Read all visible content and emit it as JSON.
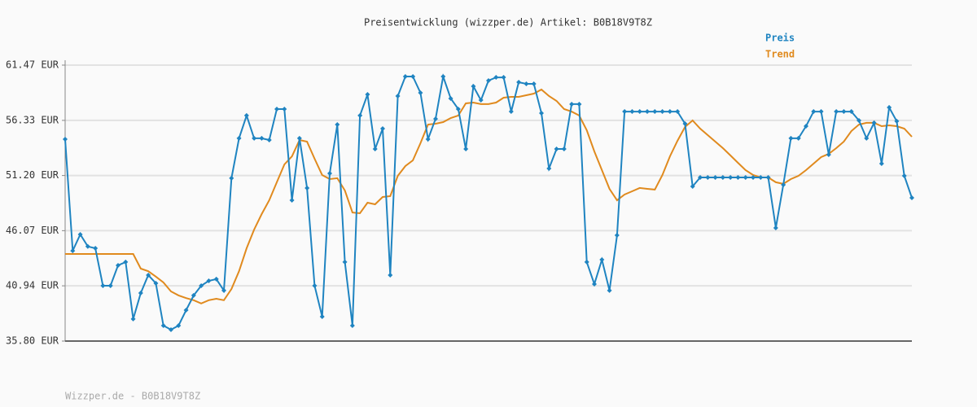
{
  "chart_data": {
    "type": "line",
    "title": "Preisentwicklung (wizzper.de) Artikel: B0B18V9T8Z",
    "footer": "Wizzper.de - B0B18V9T8Z",
    "ylim": [
      35.8,
      61.47
    ],
    "yticks": [
      {
        "value": 35.8,
        "label": "35.80 EUR"
      },
      {
        "value": 40.94,
        "label": "40.94 EUR"
      },
      {
        "value": 46.07,
        "label": "46.07 EUR"
      },
      {
        "value": 51.2,
        "label": "51.20 EUR"
      },
      {
        "value": 56.33,
        "label": "56.33 EUR"
      },
      {
        "value": 61.47,
        "label": "61.47 EUR"
      }
    ],
    "grid": true,
    "legend": "top-right",
    "series": [
      {
        "name": "Preis",
        "color": "#1f84c1",
        "markers": true,
        "values": [
          54.58,
          44.2,
          45.72,
          44.6,
          44.43,
          40.95,
          40.95,
          42.84,
          43.15,
          37.85,
          40.27,
          41.93,
          41.18,
          37.24,
          36.86,
          37.24,
          38.68,
          40.05,
          40.95,
          41.4,
          41.56,
          40.5,
          50.95,
          54.66,
          56.78,
          54.66,
          54.66,
          54.5,
          57.38,
          57.38,
          48.9,
          54.66,
          50.04,
          40.95,
          38.07,
          51.4,
          55.94,
          43.15,
          37.24,
          56.78,
          58.74,
          53.67,
          55.56,
          41.93,
          58.59,
          60.41,
          60.41,
          58.9,
          54.58,
          56.47,
          60.41,
          58.37,
          57.38,
          53.67,
          59.5,
          58.21,
          60.03,
          60.33,
          60.33,
          57.15,
          59.88,
          59.73,
          59.73,
          57.0,
          51.85,
          53.67,
          53.67,
          57.84,
          57.84,
          43.15,
          41.1,
          43.37,
          40.5,
          45.64,
          57.15,
          57.15,
          57.15,
          57.15,
          57.15,
          57.15,
          57.15,
          57.15,
          56.02,
          50.19,
          51.02,
          51.02,
          51.02,
          51.02,
          51.02,
          51.02,
          51.02,
          51.02,
          51.02,
          51.02,
          46.33,
          50.34,
          54.66,
          54.66,
          55.79,
          57.15,
          57.15,
          53.14,
          57.15,
          57.15,
          57.15,
          56.32,
          54.66,
          56.1,
          52.31,
          57.53,
          56.25,
          51.17,
          49.13
        ]
      },
      {
        "name": "Trend",
        "color": "#e08a1e",
        "markers": false,
        "values": [
          43.9,
          43.9,
          43.9,
          43.9,
          43.9,
          43.9,
          43.9,
          43.9,
          43.9,
          43.9,
          42.54,
          42.3,
          41.8,
          41.25,
          40.42,
          40.05,
          39.8,
          39.6,
          39.3,
          39.6,
          39.74,
          39.6,
          40.65,
          42.3,
          44.43,
          46.17,
          47.61,
          48.9,
          50.57,
          52.23,
          52.99,
          54.5,
          54.35,
          52.76,
          51.25,
          50.87,
          50.95,
          49.81,
          47.76,
          47.69,
          48.67,
          48.52,
          49.2,
          49.28,
          51.17,
          52.08,
          52.61,
          54.2,
          55.94,
          56.02,
          56.17,
          56.55,
          56.78,
          57.91,
          57.99,
          57.84,
          57.84,
          57.99,
          58.44,
          58.52,
          58.52,
          58.67,
          58.82,
          59.2,
          58.59,
          58.14,
          57.38,
          57.15,
          56.78,
          55.41,
          53.44,
          51.7,
          49.96,
          48.9,
          49.43,
          49.73,
          50.04,
          49.96,
          49.89,
          51.25,
          52.99,
          54.43,
          55.72,
          56.32,
          55.56,
          54.96,
          54.35,
          53.75,
          53.07,
          52.38,
          51.7,
          51.25,
          51.02,
          51.02,
          50.57,
          50.42,
          50.87,
          51.17,
          51.7,
          52.31,
          52.91,
          53.22,
          53.75,
          54.35,
          55.34,
          55.94,
          56.1,
          56.1,
          55.79,
          55.87,
          55.79,
          55.56,
          54.81
        ]
      }
    ]
  }
}
